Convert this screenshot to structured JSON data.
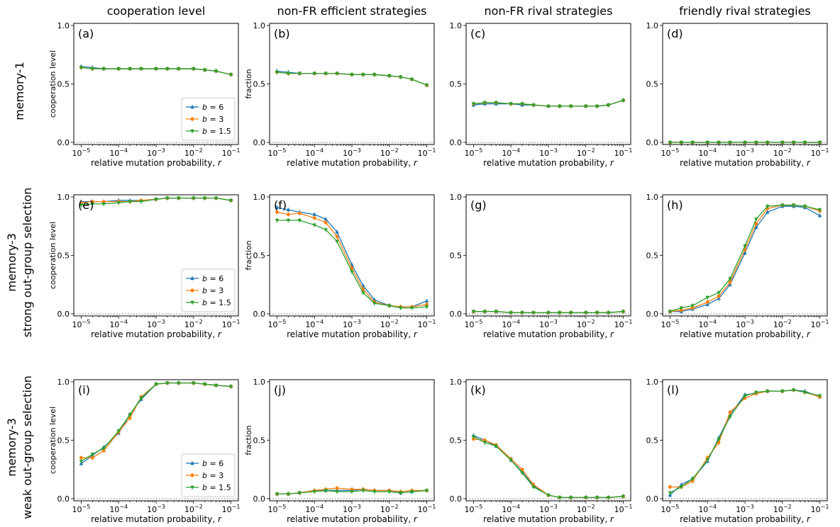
{
  "column_titles": [
    "cooperation level",
    "non-FR efficient strategies",
    "non-FR rival strategies",
    "friendly rival strategies"
  ],
  "row_titles": [
    [
      "memory-1"
    ],
    [
      "memory-3",
      "strong out-group selection"
    ],
    [
      "memory-3",
      "weak out-group selection"
    ]
  ],
  "colors": {
    "b6": "#1f77b4",
    "b3": "#ff7f0e",
    "b15": "#2ca02c"
  },
  "chart_data": {
    "type": "line",
    "xscale": "log",
    "xlim": [
      1e-05,
      0.1
    ],
    "ylim": [
      0,
      1
    ],
    "x": [
      1e-05,
      2e-05,
      4e-05,
      0.0001,
      0.0002,
      0.0004,
      0.001,
      0.002,
      0.004,
      0.01,
      0.02,
      0.04,
      0.1
    ],
    "x_tick_labels": [
      "10^-5",
      "10^-4",
      "10^-3",
      "10^-2",
      "10^-1"
    ],
    "y_tick_labels": [
      "0.0",
      "0.5",
      "1.0"
    ],
    "xlabel": "relative mutation probability, r",
    "series_names": [
      "b = 6",
      "b = 3",
      "b = 1.5"
    ],
    "panels": [
      {
        "label": "(a)",
        "ylabel": "cooperation level",
        "legend": true,
        "series": [
          {
            "name": "b = 6",
            "values": [
              0.65,
              0.64,
              0.63,
              0.63,
              0.63,
              0.63,
              0.63,
              0.63,
              0.63,
              0.63,
              0.62,
              0.61,
              0.58
            ]
          },
          {
            "name": "b = 3",
            "values": [
              0.64,
              0.63,
              0.63,
              0.63,
              0.63,
              0.63,
              0.63,
              0.63,
              0.63,
              0.63,
              0.62,
              0.61,
              0.58
            ]
          },
          {
            "name": "b = 1.5",
            "values": [
              0.64,
              0.63,
              0.63,
              0.63,
              0.63,
              0.63,
              0.63,
              0.63,
              0.63,
              0.63,
              0.62,
              0.61,
              0.58
            ]
          }
        ]
      },
      {
        "label": "(b)",
        "ylabel": "fraction",
        "legend": false,
        "series": [
          {
            "name": "b = 6",
            "values": [
              0.61,
              0.6,
              0.59,
              0.59,
              0.59,
              0.59,
              0.58,
              0.58,
              0.58,
              0.57,
              0.56,
              0.54,
              0.49
            ]
          },
          {
            "name": "b = 3",
            "values": [
              0.6,
              0.59,
              0.59,
              0.59,
              0.59,
              0.59,
              0.58,
              0.58,
              0.58,
              0.57,
              0.56,
              0.54,
              0.49
            ]
          },
          {
            "name": "b = 1.5",
            "values": [
              0.6,
              0.59,
              0.59,
              0.59,
              0.59,
              0.59,
              0.58,
              0.58,
              0.58,
              0.57,
              0.56,
              0.54,
              0.49
            ]
          }
        ]
      },
      {
        "label": "(c)",
        "ylabel": "",
        "legend": false,
        "series": [
          {
            "name": "b = 6",
            "values": [
              0.32,
              0.33,
              0.33,
              0.33,
              0.32,
              0.32,
              0.31,
              0.31,
              0.31,
              0.31,
              0.31,
              0.32,
              0.36
            ]
          },
          {
            "name": "b = 3",
            "values": [
              0.33,
              0.34,
              0.34,
              0.33,
              0.33,
              0.32,
              0.31,
              0.31,
              0.31,
              0.31,
              0.31,
              0.32,
              0.36
            ]
          },
          {
            "name": "b = 1.5",
            "values": [
              0.33,
              0.34,
              0.34,
              0.33,
              0.33,
              0.32,
              0.31,
              0.31,
              0.31,
              0.31,
              0.31,
              0.32,
              0.36
            ]
          }
        ]
      },
      {
        "label": "(d)",
        "ylabel": "",
        "legend": false,
        "series": [
          {
            "name": "b = 6",
            "values": [
              0,
              0,
              0,
              0,
              0,
              0,
              0,
              0,
              0,
              0,
              0,
              0,
              0
            ]
          },
          {
            "name": "b = 3",
            "values": [
              0,
              0,
              0,
              0,
              0,
              0,
              0,
              0,
              0,
              0,
              0,
              0,
              0
            ]
          },
          {
            "name": "b = 1.5",
            "values": [
              0,
              0,
              0,
              0,
              0,
              0,
              0,
              0,
              0,
              0,
              0,
              0,
              0
            ]
          }
        ]
      },
      {
        "label": "(e)",
        "ylabel": "cooperation level",
        "legend": true,
        "series": [
          {
            "name": "b = 6",
            "values": [
              0.96,
              0.96,
              0.96,
              0.97,
              0.97,
              0.97,
              0.98,
              0.99,
              0.99,
              0.99,
              0.99,
              0.99,
              0.97
            ]
          },
          {
            "name": "b = 3",
            "values": [
              0.95,
              0.96,
              0.96,
              0.96,
              0.96,
              0.97,
              0.98,
              0.99,
              0.99,
              0.99,
              0.99,
              0.99,
              0.97
            ]
          },
          {
            "name": "b = 1.5",
            "values": [
              0.93,
              0.94,
              0.94,
              0.95,
              0.96,
              0.96,
              0.98,
              0.99,
              0.99,
              0.99,
              0.99,
              0.99,
              0.97
            ]
          }
        ]
      },
      {
        "label": "(f)",
        "ylabel": "fraction",
        "legend": false,
        "series": [
          {
            "name": "b = 6",
            "values": [
              0.91,
              0.89,
              0.87,
              0.85,
              0.81,
              0.7,
              0.42,
              0.24,
              0.12,
              0.07,
              0.06,
              0.06,
              0.11
            ]
          },
          {
            "name": "b = 3",
            "values": [
              0.87,
              0.85,
              0.86,
              0.82,
              0.78,
              0.66,
              0.39,
              0.21,
              0.1,
              0.07,
              0.06,
              0.06,
              0.08
            ]
          },
          {
            "name": "b = 1.5",
            "values": [
              0.8,
              0.8,
              0.8,
              0.76,
              0.72,
              0.62,
              0.36,
              0.18,
              0.09,
              0.07,
              0.05,
              0.05,
              0.06
            ]
          }
        ]
      },
      {
        "label": "(g)",
        "ylabel": "",
        "legend": false,
        "series": [
          {
            "name": "b = 6",
            "values": [
              0.02,
              0.02,
              0.02,
              0.01,
              0.01,
              0.01,
              0.01,
              0.01,
              0.01,
              0.01,
              0.01,
              0.01,
              0.02
            ]
          },
          {
            "name": "b = 3",
            "values": [
              0.02,
              0.02,
              0.02,
              0.01,
              0.01,
              0.01,
              0.01,
              0.01,
              0.01,
              0.01,
              0.01,
              0.01,
              0.02
            ]
          },
          {
            "name": "b = 1.5",
            "values": [
              0.02,
              0.02,
              0.02,
              0.01,
              0.01,
              0.01,
              0.01,
              0.01,
              0.01,
              0.01,
              0.01,
              0.01,
              0.02
            ]
          }
        ]
      },
      {
        "label": "(h)",
        "ylabel": "",
        "legend": false,
        "series": [
          {
            "name": "b = 6",
            "values": [
              0.02,
              0.02,
              0.04,
              0.08,
              0.13,
              0.25,
              0.52,
              0.74,
              0.87,
              0.92,
              0.92,
              0.91,
              0.84
            ]
          },
          {
            "name": "b = 3",
            "values": [
              0.02,
              0.03,
              0.05,
              0.1,
              0.15,
              0.27,
              0.55,
              0.77,
              0.9,
              0.93,
              0.93,
              0.92,
              0.88
            ]
          },
          {
            "name": "b = 1.5",
            "values": [
              0.02,
              0.05,
              0.07,
              0.14,
              0.18,
              0.3,
              0.58,
              0.81,
              0.92,
              0.93,
              0.93,
              0.92,
              0.89
            ]
          }
        ]
      },
      {
        "label": "(i)",
        "ylabel": "cooperation level",
        "legend": true,
        "series": [
          {
            "name": "b = 6",
            "values": [
              0.3,
              0.37,
              0.44,
              0.56,
              0.72,
              0.85,
              0.98,
              0.99,
              0.99,
              0.99,
              0.98,
              0.97,
              0.96
            ]
          },
          {
            "name": "b = 3",
            "values": [
              0.35,
              0.35,
              0.41,
              0.57,
              0.69,
              0.87,
              0.98,
              0.99,
              0.99,
              0.99,
              0.98,
              0.97,
              0.96
            ]
          },
          {
            "name": "b = 1.5",
            "values": [
              0.32,
              0.38,
              0.43,
              0.58,
              0.72,
              0.86,
              0.98,
              0.99,
              0.99,
              0.99,
              0.98,
              0.97,
              0.96
            ]
          }
        ]
      },
      {
        "label": "(j)",
        "ylabel": "fraction",
        "legend": false,
        "series": [
          {
            "name": "b = 6",
            "values": [
              0.04,
              0.04,
              0.05,
              0.07,
              0.07,
              0.07,
              0.07,
              0.08,
              0.07,
              0.07,
              0.05,
              0.06,
              0.07
            ]
          },
          {
            "name": "b = 3",
            "values": [
              0.04,
              0.04,
              0.05,
              0.07,
              0.08,
              0.09,
              0.08,
              0.08,
              0.07,
              0.07,
              0.06,
              0.07,
              0.07
            ]
          },
          {
            "name": "b = 1.5",
            "values": [
              0.04,
              0.04,
              0.05,
              0.06,
              0.07,
              0.06,
              0.06,
              0.07,
              0.06,
              0.06,
              0.05,
              0.06,
              0.07
            ]
          }
        ]
      },
      {
        "label": "(k)",
        "ylabel": "",
        "legend": false,
        "series": [
          {
            "name": "b = 6",
            "values": [
              0.54,
              0.5,
              0.45,
              0.33,
              0.23,
              0.11,
              0.03,
              0.01,
              0.01,
              0.01,
              0.01,
              0.01,
              0.02
            ]
          },
          {
            "name": "b = 3",
            "values": [
              0.51,
              0.5,
              0.46,
              0.34,
              0.25,
              0.12,
              0.03,
              0.01,
              0.01,
              0.01,
              0.01,
              0.01,
              0.02
            ]
          },
          {
            "name": "b = 1.5",
            "values": [
              0.53,
              0.48,
              0.45,
              0.33,
              0.22,
              0.1,
              0.03,
              0.01,
              0.01,
              0.01,
              0.01,
              0.01,
              0.02
            ]
          }
        ]
      },
      {
        "label": "(l)",
        "ylabel": "",
        "legend": false,
        "series": [
          {
            "name": "b = 6",
            "values": [
              0.03,
              0.12,
              0.17,
              0.32,
              0.52,
              0.72,
              0.89,
              0.9,
              0.92,
              0.92,
              0.93,
              0.92,
              0.87
            ]
          },
          {
            "name": "b = 3",
            "values": [
              0.1,
              0.1,
              0.15,
              0.35,
              0.48,
              0.74,
              0.86,
              0.9,
              0.92,
              0.92,
              0.93,
              0.91,
              0.87
            ]
          },
          {
            "name": "b = 1.5",
            "values": [
              0.05,
              0.1,
              0.17,
              0.33,
              0.51,
              0.7,
              0.88,
              0.91,
              0.92,
              0.92,
              0.93,
              0.91,
              0.88
            ]
          }
        ]
      }
    ]
  }
}
